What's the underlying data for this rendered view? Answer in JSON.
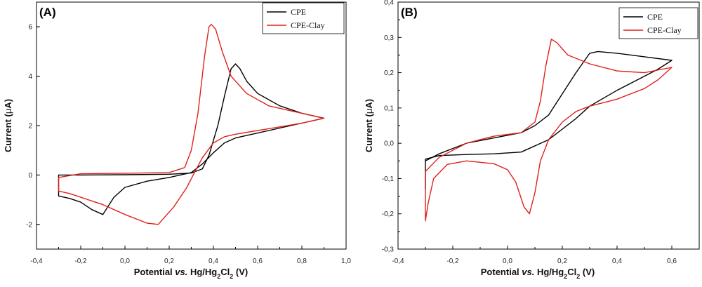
{
  "chart_data": [
    {
      "panel": "(A)",
      "type": "line",
      "xlabel_parts": [
        "Potential ",
        "vs.",
        " Hg/Hg",
        "2",
        "Cl",
        "2",
        " (V)"
      ],
      "ylabel_parts": [
        "Current (",
        "μ",
        "A)"
      ],
      "xlim": [
        -0.4,
        1.0
      ],
      "ylim": [
        -3,
        7
      ],
      "xticks": [
        -0.4,
        -0.2,
        0.0,
        0.2,
        0.4,
        0.6,
        0.8,
        1.0
      ],
      "xtick_labels": [
        "-0,4",
        "-0,2",
        "0,0",
        "0,2",
        "0,4",
        "0,6",
        "0,8",
        "1,0"
      ],
      "yticks": [
        -2,
        0,
        2,
        4,
        6
      ],
      "ytick_labels": [
        "-2",
        "0",
        "2",
        "4",
        "6"
      ],
      "legend_position": "top-right",
      "series": [
        {
          "name": "CPE",
          "color": "#000000",
          "points": [
            [
              -0.3,
              -0.5
            ],
            [
              -0.3,
              0.0
            ],
            [
              -0.2,
              0.0
            ],
            [
              0.0,
              0.01
            ],
            [
              0.2,
              0.03
            ],
            [
              0.3,
              0.08
            ],
            [
              0.35,
              0.25
            ],
            [
              0.38,
              0.8
            ],
            [
              0.42,
              2.0
            ],
            [
              0.45,
              3.2
            ],
            [
              0.48,
              4.3
            ],
            [
              0.5,
              4.5
            ],
            [
              0.52,
              4.3
            ],
            [
              0.55,
              3.8
            ],
            [
              0.6,
              3.3
            ],
            [
              0.7,
              2.8
            ],
            [
              0.8,
              2.5
            ],
            [
              0.9,
              2.3
            ],
            [
              0.8,
              2.1
            ],
            [
              0.7,
              1.9
            ],
            [
              0.6,
              1.7
            ],
            [
              0.5,
              1.5
            ],
            [
              0.45,
              1.3
            ],
            [
              0.4,
              0.9
            ],
            [
              0.35,
              0.45
            ],
            [
              0.3,
              0.1
            ],
            [
              0.2,
              -0.1
            ],
            [
              0.1,
              -0.25
            ],
            [
              0.0,
              -0.5
            ],
            [
              -0.05,
              -0.9
            ],
            [
              -0.1,
              -1.6
            ],
            [
              -0.15,
              -1.4
            ],
            [
              -0.2,
              -1.1
            ],
            [
              -0.25,
              -0.95
            ],
            [
              -0.3,
              -0.85
            ]
          ]
        },
        {
          "name": "CPE-Clay",
          "color": "#e0201a",
          "points": [
            [
              -0.3,
              -0.6
            ],
            [
              -0.3,
              -0.1
            ],
            [
              -0.2,
              0.05
            ],
            [
              0.0,
              0.07
            ],
            [
              0.2,
              0.1
            ],
            [
              0.27,
              0.3
            ],
            [
              0.3,
              1.0
            ],
            [
              0.33,
              2.5
            ],
            [
              0.36,
              4.8
            ],
            [
              0.38,
              6.0
            ],
            [
              0.39,
              6.1
            ],
            [
              0.41,
              5.9
            ],
            [
              0.44,
              5.0
            ],
            [
              0.48,
              4.0
            ],
            [
              0.55,
              3.3
            ],
            [
              0.65,
              2.8
            ],
            [
              0.75,
              2.6
            ],
            [
              0.9,
              2.3
            ],
            [
              0.8,
              2.1
            ],
            [
              0.7,
              1.95
            ],
            [
              0.6,
              1.8
            ],
            [
              0.5,
              1.65
            ],
            [
              0.45,
              1.55
            ],
            [
              0.4,
              1.3
            ],
            [
              0.35,
              0.7
            ],
            [
              0.32,
              0.2
            ],
            [
              0.28,
              -0.5
            ],
            [
              0.22,
              -1.3
            ],
            [
              0.15,
              -2.0
            ],
            [
              0.1,
              -1.95
            ],
            [
              0.0,
              -1.6
            ],
            [
              -0.1,
              -1.2
            ],
            [
              -0.2,
              -0.9
            ],
            [
              -0.25,
              -0.75
            ],
            [
              -0.3,
              -0.65
            ]
          ]
        }
      ]
    },
    {
      "panel": "(B)",
      "type": "line",
      "xlabel_parts": [
        "Potential ",
        "vs.",
        " Hg/Hg",
        "2",
        "Cl",
        "2",
        " (V)"
      ],
      "ylabel_parts": [
        "Current (",
        "μ",
        "A)"
      ],
      "xlim": [
        -0.4,
        0.7
      ],
      "ylim": [
        -0.3,
        0.4
      ],
      "xticks": [
        -0.4,
        -0.2,
        0.0,
        0.2,
        0.4,
        0.6
      ],
      "xtick_labels": [
        "-0,4",
        "-0,2",
        "0,0",
        "0,2",
        "0,4",
        "0,6"
      ],
      "yticks": [
        -0.3,
        -0.2,
        -0.1,
        0.0,
        0.1,
        0.2,
        0.3,
        0.4
      ],
      "ytick_labels": [
        "-0,3",
        "-0,2",
        "-0,1",
        "0,0",
        "0,1",
        "0,2",
        "0,3",
        "0,4"
      ],
      "legend_position": "top-right",
      "series": [
        {
          "name": "CPE",
          "color": "#000000",
          "points": [
            [
              -0.3,
              -0.13
            ],
            [
              -0.3,
              -0.05
            ],
            [
              -0.25,
              -0.03
            ],
            [
              -0.15,
              0.0
            ],
            [
              -0.05,
              0.015
            ],
            [
              0.05,
              0.03
            ],
            [
              0.1,
              0.05
            ],
            [
              0.15,
              0.08
            ],
            [
              0.2,
              0.14
            ],
            [
              0.25,
              0.2
            ],
            [
              0.3,
              0.255
            ],
            [
              0.33,
              0.26
            ],
            [
              0.4,
              0.255
            ],
            [
              0.5,
              0.245
            ],
            [
              0.6,
              0.235
            ],
            [
              0.55,
              0.21
            ],
            [
              0.5,
              0.19
            ],
            [
              0.4,
              0.15
            ],
            [
              0.3,
              0.105
            ],
            [
              0.25,
              0.07
            ],
            [
              0.2,
              0.04
            ],
            [
              0.15,
              0.01
            ],
            [
              0.05,
              -0.025
            ],
            [
              -0.05,
              -0.03
            ],
            [
              -0.15,
              -0.032
            ],
            [
              -0.25,
              -0.035
            ],
            [
              -0.3,
              -0.045
            ]
          ]
        },
        {
          "name": "CPE-Clay",
          "color": "#e0201a",
          "points": [
            [
              -0.3,
              -0.18
            ],
            [
              -0.3,
              -0.08
            ],
            [
              -0.25,
              -0.04
            ],
            [
              -0.15,
              0.0
            ],
            [
              -0.05,
              0.02
            ],
            [
              0.05,
              0.03
            ],
            [
              0.1,
              0.06
            ],
            [
              0.12,
              0.12
            ],
            [
              0.14,
              0.22
            ],
            [
              0.16,
              0.295
            ],
            [
              0.18,
              0.285
            ],
            [
              0.22,
              0.25
            ],
            [
              0.3,
              0.225
            ],
            [
              0.4,
              0.205
            ],
            [
              0.5,
              0.2
            ],
            [
              0.6,
              0.215
            ],
            [
              0.55,
              0.18
            ],
            [
              0.5,
              0.155
            ],
            [
              0.4,
              0.125
            ],
            [
              0.3,
              0.105
            ],
            [
              0.25,
              0.09
            ],
            [
              0.2,
              0.06
            ],
            [
              0.15,
              0.01
            ],
            [
              0.12,
              -0.05
            ],
            [
              0.1,
              -0.14
            ],
            [
              0.08,
              -0.2
            ],
            [
              0.06,
              -0.18
            ],
            [
              0.03,
              -0.11
            ],
            [
              0.0,
              -0.075
            ],
            [
              -0.05,
              -0.058
            ],
            [
              -0.15,
              -0.05
            ],
            [
              -0.22,
              -0.06
            ],
            [
              -0.27,
              -0.1
            ],
            [
              -0.29,
              -0.17
            ],
            [
              -0.3,
              -0.22
            ]
          ]
        }
      ]
    }
  ]
}
